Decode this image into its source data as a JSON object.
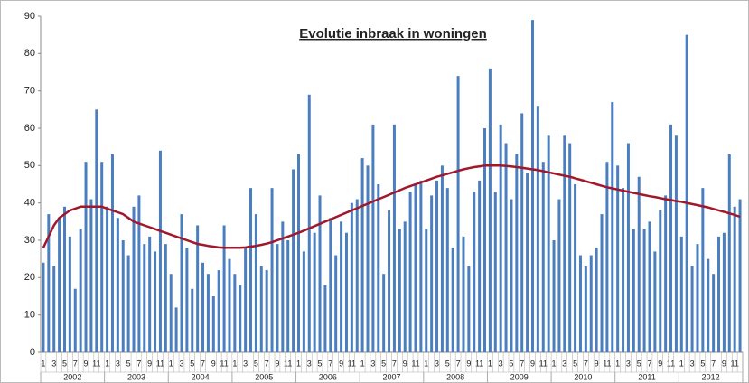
{
  "chart_data": {
    "type": "bar",
    "title": "Evolutie inbraak in woningen",
    "categories": [
      "1",
      null,
      "3",
      null,
      "5",
      null,
      "7",
      null,
      "9",
      null,
      "11",
      null,
      "1",
      null,
      "3",
      null,
      "5",
      null,
      "7",
      null,
      "9",
      null,
      "11",
      null,
      "1",
      null,
      "3",
      null,
      "5",
      null,
      "7",
      null,
      "9",
      null,
      "11",
      null,
      "1",
      null,
      "3",
      null,
      "5",
      null,
      "7",
      null,
      "9",
      null,
      "11",
      null,
      "1",
      null,
      "3",
      null,
      "5",
      null,
      "7",
      null,
      "9",
      null,
      "11",
      null,
      "1",
      null,
      "3",
      null,
      "5",
      null,
      "7",
      null,
      "9",
      null,
      "11",
      null,
      "1",
      null,
      "3",
      null,
      "5",
      null,
      "7",
      null,
      "9",
      null,
      "11",
      null,
      "1",
      null,
      "3",
      null,
      "5",
      null,
      "7",
      null,
      "9",
      null,
      "11",
      null,
      "1",
      null,
      "3",
      null,
      "5",
      null,
      "7",
      null,
      "9",
      null,
      "11",
      null,
      "1",
      null,
      "3",
      null,
      "5",
      null,
      "7",
      null,
      "9",
      null,
      "11",
      null,
      "1",
      null,
      "3",
      null,
      "5",
      null,
      "7",
      null,
      "9",
      null,
      "11",
      null
    ],
    "year_groups": [
      "2002",
      "2003",
      "2004",
      "2005",
      "2006",
      "2007",
      "2008",
      "2009",
      "2010",
      "2011",
      "2012"
    ],
    "values": [
      24,
      37,
      23,
      36,
      39,
      31,
      17,
      33,
      51,
      41,
      65,
      51,
      39,
      53,
      36,
      30,
      26,
      39,
      42,
      29,
      31,
      27,
      54,
      29,
      21,
      12,
      37,
      28,
      17,
      34,
      24,
      21,
      15,
      22,
      34,
      25,
      21,
      18,
      28,
      44,
      37,
      23,
      22,
      44,
      29,
      35,
      30,
      49,
      53,
      27,
      69,
      32,
      42,
      18,
      36,
      26,
      35,
      32,
      40,
      41,
      52,
      50,
      61,
      45,
      21,
      38,
      61,
      33,
      35,
      43,
      45,
      46,
      33,
      42,
      46,
      50,
      44,
      28,
      74,
      31,
      23,
      43,
      46,
      60,
      76,
      43,
      61,
      56,
      41,
      53,
      64,
      48,
      89,
      66,
      51,
      58,
      30,
      41,
      58,
      56,
      45,
      26,
      23,
      26,
      28,
      37,
      51,
      67,
      50,
      44,
      56,
      33,
      47,
      33,
      35,
      27,
      38,
      42,
      61,
      58,
      31,
      85,
      23,
      29,
      44,
      25,
      21,
      31,
      32,
      53,
      39,
      41
    ],
    "color": "#4a7ebf",
    "trend": {
      "color": "#a0182c",
      "values": [
        28,
        31,
        34,
        36,
        37,
        38,
        38.5,
        39,
        39,
        39,
        39,
        39,
        38.5,
        38,
        37.5,
        37,
        36,
        35,
        34.5,
        34,
        33.5,
        33,
        32.5,
        32,
        31.5,
        31,
        30.5,
        30,
        29.5,
        29,
        28.8,
        28.5,
        28.3,
        28.1,
        28,
        28,
        28,
        28,
        28.1,
        28.3,
        28.5,
        28.8,
        29.1,
        29.5,
        30,
        30.5,
        31,
        31.5,
        32,
        32.6,
        33.2,
        33.8,
        34.4,
        35,
        35.6,
        36.2,
        36.8,
        37.4,
        38,
        38.6,
        39.2,
        39.8,
        40.4,
        41,
        41.6,
        42.2,
        42.8,
        43.4,
        44,
        44.5,
        45,
        45.5,
        46,
        46.5,
        47,
        47.4,
        47.8,
        48.2,
        48.6,
        49,
        49.3,
        49.6,
        49.8,
        50,
        50,
        50,
        50,
        49.9,
        49.8,
        49.6,
        49.4,
        49.2,
        49,
        48.8,
        48.5,
        48.2,
        47.9,
        47.6,
        47.3,
        47,
        46.6,
        46.2,
        45.8,
        45.4,
        45,
        44.6,
        44.2,
        43.9,
        43.6,
        43.3,
        43,
        42.7,
        42.4,
        42.1,
        41.8,
        41.6,
        41.3,
        41,
        40.8,
        40.5,
        40.3,
        40,
        39.7,
        39.4,
        39.1,
        38.8,
        38.4,
        38,
        37.6,
        37.2,
        36.8,
        36.3
      ]
    },
    "ylim": [
      0,
      90
    ],
    "yticks": [
      0,
      10,
      20,
      30,
      40,
      50,
      60,
      70,
      80,
      90
    ],
    "grid": false
  }
}
